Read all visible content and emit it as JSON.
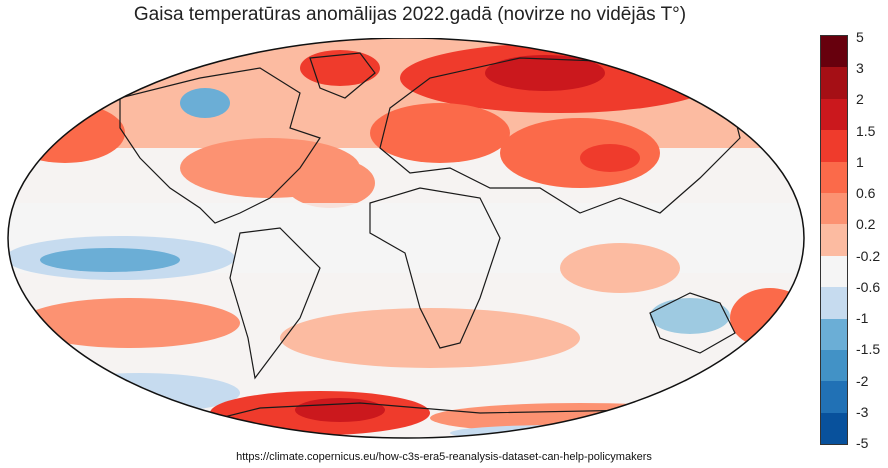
{
  "title": "Gaisa temperatūras anomālijas 2022.gadā (novirze no vidējās T°)",
  "source": "https://climate.copernicus.eu/how-c3s-era5-reanalysis-dataset-can-help-policymakers",
  "legend": {
    "ticks": [
      "5",
      "3",
      "2",
      "1.5",
      "1",
      "0.6",
      "0.2",
      "-0.2",
      "-0.6",
      "-1",
      "-1.5",
      "-2",
      "-3",
      "-5"
    ],
    "colors": [
      "#67000d",
      "#a50f15",
      "#cb181d",
      "#ef3b2c",
      "#fb6a4a",
      "#fc9272",
      "#fcbba1",
      "#f5f5f5",
      "#c6dbef",
      "#6baed6",
      "#4292c6",
      "#2171b5",
      "#08519c",
      "#08306b"
    ]
  }
}
